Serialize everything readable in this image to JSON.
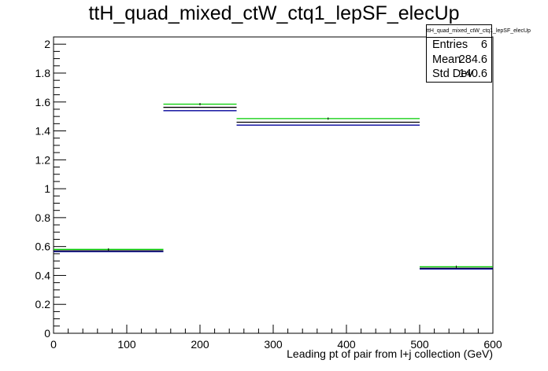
{
  "chart_data": {
    "type": "histogram",
    "title": "ttH_quad_mixed_ctW_ctq1_lepSF_elecUp",
    "xlabel": "Leading pt of pair from l+j collection (GeV)",
    "ylabel": "",
    "xlim": [
      0,
      600
    ],
    "ylim": [
      0,
      2.05
    ],
    "x_ticks": [
      0,
      100,
      200,
      300,
      400,
      500,
      600
    ],
    "y_ticks": [
      0,
      0.2,
      0.4,
      0.6,
      0.8,
      1,
      1.2,
      1.4,
      1.6,
      1.8,
      2
    ],
    "bin_edges": [
      0,
      150,
      250,
      500,
      600
    ],
    "series": [
      {
        "color": "#00cc00",
        "values": [
          0.58,
          1.585,
          1.485,
          0.46
        ]
      },
      {
        "color": "#000000",
        "values": [
          0.57,
          1.563,
          1.46,
          0.45
        ]
      },
      {
        "color": "#000099",
        "values": [
          0.565,
          1.54,
          1.44,
          0.445
        ]
      }
    ],
    "stats": {
      "name": "ttH_quad_mixed_ctW_ctq1_lepSF_elecUp",
      "rows": [
        {
          "label": "Entries",
          "value": "6"
        },
        {
          "label": "Mean",
          "value": "284.6"
        },
        {
          "label": "Std Dev",
          "value": "140.6"
        }
      ]
    },
    "legend": "top-right"
  }
}
